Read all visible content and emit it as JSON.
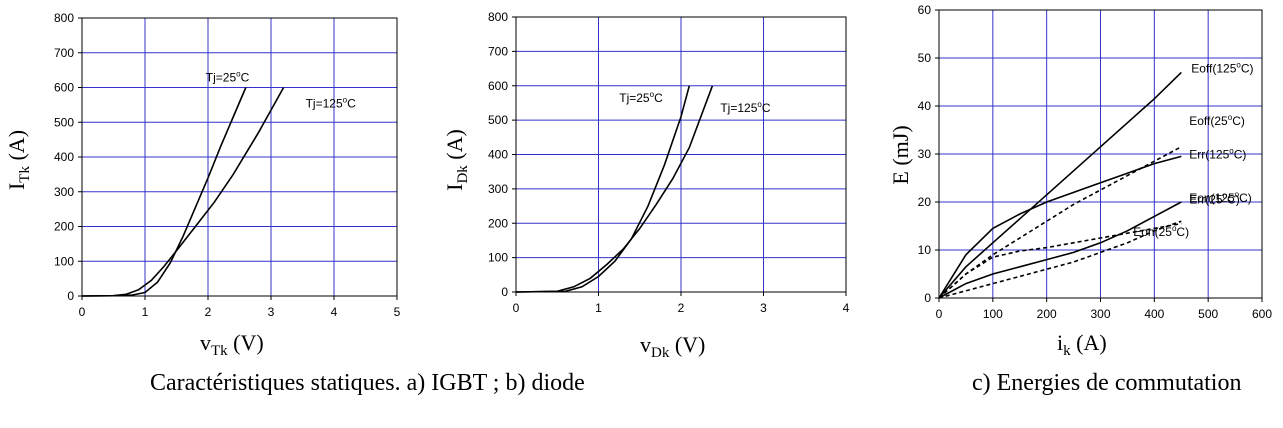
{
  "captions": {
    "left": "Caractéristiques statiques.  a) IGBT ;  b) diode",
    "right": "c) Energies de commutation"
  },
  "colors": {
    "grid": "#3333cc",
    "curve": "#000000",
    "frame": "#000000"
  },
  "chart_data": [
    {
      "id": "a",
      "type": "line",
      "title": "",
      "xlabel": {
        "base": "v",
        "sub": "Tk",
        "rest": " (V)"
      },
      "ylabel": {
        "base": "I",
        "sub": "Tk",
        "rest": " (A)"
      },
      "xlim": [
        0,
        5
      ],
      "ylim": [
        0,
        800
      ],
      "xticks": [
        0,
        1,
        2,
        3,
        4,
        5
      ],
      "yticks": [
        0,
        100,
        200,
        300,
        400,
        500,
        600,
        700,
        800
      ],
      "grid": true,
      "series": [
        {
          "name": "Tj=25°C",
          "label": {
            "pre": "Tj=25",
            "sup": "o",
            "post": "C"
          },
          "style": "solid",
          "x": [
            0,
            0.5,
            0.8,
            1.0,
            1.2,
            1.4,
            1.6,
            1.8,
            2.0,
            2.2,
            2.4,
            2.6
          ],
          "y": [
            0,
            1,
            3,
            10,
            40,
            95,
            170,
            255,
            340,
            430,
            515,
            600
          ]
        },
        {
          "name": "Tj=125°C",
          "label": {
            "pre": "Tj=125",
            "sup": "o",
            "post": "C"
          },
          "style": "solid",
          "x": [
            0,
            0.5,
            0.7,
            0.9,
            1.1,
            1.3,
            1.5,
            1.8,
            2.1,
            2.4,
            2.8,
            3.2
          ],
          "y": [
            0,
            1,
            5,
            18,
            45,
            85,
            130,
            200,
            270,
            350,
            470,
            600
          ]
        }
      ]
    },
    {
      "id": "b",
      "type": "line",
      "title": "",
      "xlabel": {
        "base": "v",
        "sub": "Dk",
        "rest": " (V)"
      },
      "ylabel": {
        "base": "I",
        "sub": "Dk",
        "rest": " (A)"
      },
      "xlim": [
        0,
        4
      ],
      "ylim": [
        0,
        800
      ],
      "xticks": [
        0,
        1,
        2,
        3,
        4
      ],
      "yticks": [
        0,
        100,
        200,
        300,
        400,
        500,
        600,
        700,
        800
      ],
      "grid": true,
      "series": [
        {
          "name": "Tj=25°C",
          "label": {
            "pre": "Tj=25",
            "sup": "o",
            "post": "C"
          },
          "style": "solid",
          "x": [
            0,
            0.6,
            0.8,
            1.0,
            1.2,
            1.4,
            1.6,
            1.8,
            2.0,
            2.1
          ],
          "y": [
            0,
            2,
            15,
            45,
            90,
            155,
            250,
            370,
            510,
            600
          ]
        },
        {
          "name": "Tj=125°C",
          "label": {
            "pre": "Tj=125",
            "sup": "o",
            "post": "C"
          },
          "style": "solid",
          "x": [
            0,
            0.5,
            0.7,
            0.9,
            1.1,
            1.3,
            1.5,
            1.7,
            1.9,
            2.1,
            2.38
          ],
          "y": [
            0,
            2,
            15,
            40,
            80,
            125,
            185,
            255,
            330,
            420,
            600
          ]
        }
      ]
    },
    {
      "id": "c",
      "type": "line",
      "title": "",
      "xlabel": {
        "base": "i",
        "sub": "k",
        "rest": " (A)"
      },
      "ylabel": {
        "base": "E (mJ)",
        "sub": "",
        "rest": ""
      },
      "xlim": [
        0,
        600
      ],
      "ylim": [
        0,
        60
      ],
      "xticks": [
        0,
        100,
        200,
        300,
        400,
        500,
        600
      ],
      "yticks": [
        0,
        10,
        20,
        30,
        40,
        50,
        60
      ],
      "grid": true,
      "series": [
        {
          "name": "Eoff(125°C)",
          "label": {
            "pre": "Eoff(125",
            "sup": "o",
            "post": "C)"
          },
          "style": "solid",
          "x": [
            0,
            50,
            100,
            150,
            200,
            250,
            300,
            350,
            400,
            450
          ],
          "y": [
            0,
            6.5,
            11.5,
            16.5,
            21.5,
            26.5,
            31.5,
            36.5,
            41.5,
            47
          ]
        },
        {
          "name": "Eoff(25°C)",
          "label": {
            "pre": "Eoff(25",
            "sup": "o",
            "post": "C)"
          },
          "style": "dashed",
          "x": [
            0,
            50,
            100,
            150,
            200,
            250,
            300,
            350,
            400,
            450
          ],
          "y": [
            0,
            5,
            9,
            12.5,
            16,
            19.5,
            22.5,
            25.5,
            28.5,
            31.5
          ]
        },
        {
          "name": "Err(125°C)",
          "label": {
            "pre": "Err(125",
            "sup": "o",
            "post": "C)"
          },
          "style": "solid",
          "x": [
            0,
            50,
            100,
            150,
            200,
            250,
            300,
            350,
            400,
            450
          ],
          "y": [
            0,
            9,
            14.5,
            17.5,
            20,
            22,
            24,
            26,
            28,
            29.5
          ]
        },
        {
          "name": "Eon(125°C)",
          "label": {
            "pre": "Eon(125",
            "sup": "o",
            "post": "C)"
          },
          "style": "solid",
          "x": [
            0,
            50,
            100,
            150,
            200,
            250,
            300,
            350,
            400,
            450
          ],
          "y": [
            0,
            3,
            5,
            6.5,
            8,
            9.5,
            11.5,
            14,
            17,
            20
          ]
        },
        {
          "name": "Err(25°C)",
          "label": {
            "pre": "Err(25",
            "sup": "o",
            "post": "C)"
          },
          "style": "dashed",
          "x": [
            0,
            50,
            100,
            150,
            200,
            250,
            300,
            350,
            400,
            450
          ],
          "y": [
            0,
            5,
            8.5,
            9.8,
            10.5,
            11.5,
            12.5,
            13.5,
            14.5,
            15.5
          ]
        },
        {
          "name": "Eon(25°C)",
          "label": {
            "pre": "Eon(25",
            "sup": "o",
            "post": "C)"
          },
          "style": "dashed",
          "x": [
            0,
            50,
            100,
            150,
            200,
            250,
            300,
            350,
            400,
            450
          ],
          "y": [
            0,
            1.5,
            3,
            4.5,
            6,
            7.5,
            9.5,
            11.5,
            14,
            16
          ]
        }
      ]
    }
  ]
}
